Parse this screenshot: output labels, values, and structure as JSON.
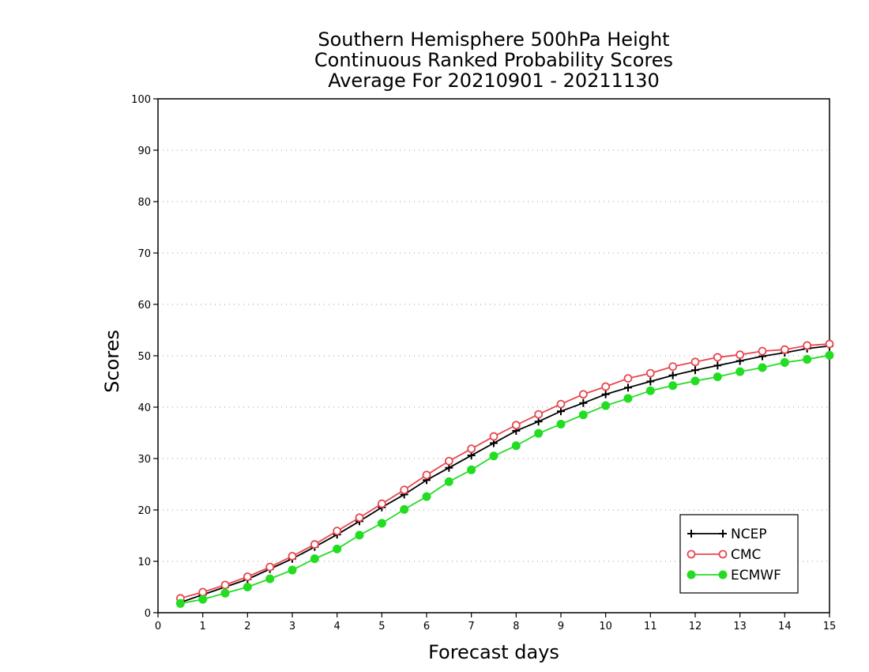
{
  "chart_data": {
    "type": "line",
    "title": [
      "Southern Hemisphere 500hPa Height",
      "Continuous Ranked Probability Scores",
      "Average For 20210901 - 20211130"
    ],
    "xlabel": "Forecast days",
    "ylabel": "Scores",
    "xlim": [
      0,
      15
    ],
    "ylim": [
      0,
      100
    ],
    "xticks": [
      0,
      1,
      2,
      3,
      4,
      5,
      6,
      7,
      8,
      9,
      10,
      11,
      12,
      13,
      14,
      15
    ],
    "yticks": [
      0,
      10,
      20,
      30,
      40,
      50,
      60,
      70,
      80,
      90,
      100
    ],
    "grid": true,
    "legend_position": "bottom-right",
    "x": [
      0.5,
      1,
      1.5,
      2,
      2.5,
      3,
      3.5,
      4,
      4.5,
      5,
      5.5,
      6,
      6.5,
      7,
      7.5,
      8,
      8.5,
      9,
      9.5,
      10,
      10.5,
      11,
      11.5,
      12,
      12.5,
      13,
      13.5,
      14,
      14.5,
      15
    ],
    "series": [
      {
        "name": "NCEP",
        "color": "#000000",
        "marker": "plus",
        "values": [
          2.0,
          3.5,
          5.0,
          6.5,
          8.5,
          10.5,
          12.8,
          15.2,
          17.8,
          20.5,
          23.0,
          25.8,
          28.2,
          30.6,
          33.0,
          35.4,
          37.2,
          39.2,
          40.8,
          42.5,
          43.8,
          45.0,
          46.2,
          47.2,
          48.1,
          49.0,
          49.9,
          50.6,
          51.4,
          51.9
        ]
      },
      {
        "name": "CMC",
        "color": "#e8474f",
        "marker": "open-circle",
        "values": [
          2.8,
          4.0,
          5.4,
          7.0,
          8.9,
          11.0,
          13.3,
          15.9,
          18.5,
          21.2,
          23.9,
          26.8,
          29.5,
          31.9,
          34.3,
          36.5,
          38.6,
          40.6,
          42.5,
          44.0,
          45.6,
          46.6,
          47.9,
          48.8,
          49.7,
          50.2,
          50.9,
          51.2,
          52.0,
          52.3
        ]
      },
      {
        "name": "ECMWF",
        "color": "#22dd22",
        "marker": "filled-circle",
        "values": [
          1.8,
          2.6,
          3.8,
          5.0,
          6.6,
          8.3,
          10.5,
          12.4,
          15.1,
          17.4,
          20.1,
          22.6,
          25.5,
          27.8,
          30.5,
          32.5,
          34.9,
          36.7,
          38.5,
          40.3,
          41.7,
          43.2,
          44.2,
          45.1,
          45.9,
          46.9,
          47.7,
          48.7,
          49.3,
          50.1
        ]
      }
    ]
  }
}
